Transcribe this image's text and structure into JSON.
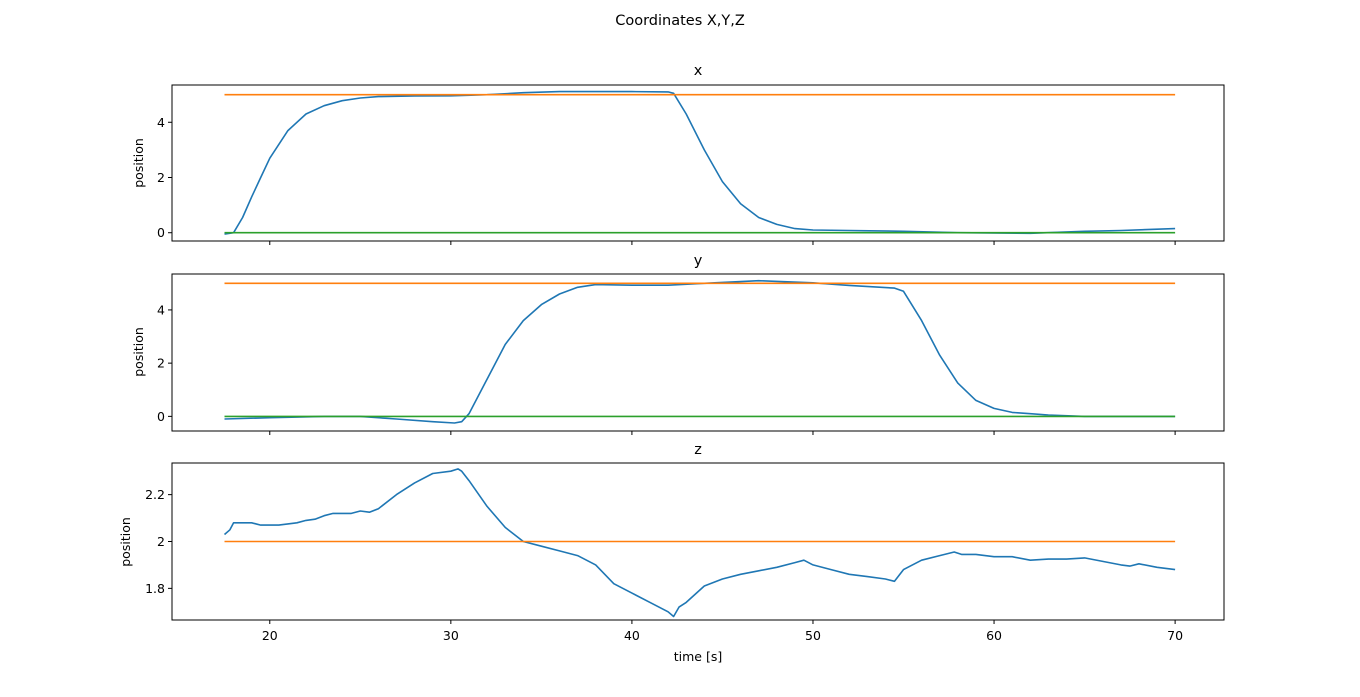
{
  "chart_data": {
    "title": "Coordinates X,Y,Z",
    "xlabel": "time [s]",
    "xlim": [
      14.6,
      72.7
    ],
    "xticks": [
      20,
      30,
      40,
      50,
      60,
      70
    ],
    "colors": {
      "actual": "#1f77b4",
      "target": "#ff7f0e",
      "zero": "#2ca02c"
    },
    "subplots": [
      {
        "type": "line",
        "title": "x",
        "ylabel": "position",
        "ylim": [
          -0.3,
          5.35
        ],
        "yticks": [
          0,
          2,
          4
        ],
        "series": [
          {
            "color": "#1f77b4",
            "x": [
              17.5,
              18.0,
              18.5,
              19.0,
              19.5,
              20.0,
              21.0,
              22.0,
              23.0,
              24.0,
              25.0,
              26.0,
              28.0,
              30.0,
              32.0,
              34.0,
              36.0,
              38.0,
              40.0,
              42.0,
              42.3,
              43.0,
              44.0,
              45.0,
              46.0,
              47.0,
              48.0,
              49.0,
              50.0,
              52.0,
              55.0,
              58.0,
              62.0,
              65.0,
              67.0,
              70.0
            ],
            "y": [
              -0.05,
              0.0,
              0.55,
              1.3,
              2.0,
              2.7,
              3.7,
              4.3,
              4.6,
              4.78,
              4.88,
              4.93,
              4.95,
              4.96,
              5.0,
              5.07,
              5.11,
              5.11,
              5.11,
              5.1,
              5.05,
              4.3,
              3.0,
              1.85,
              1.05,
              0.55,
              0.3,
              0.15,
              0.1,
              0.08,
              0.05,
              0.0,
              -0.02,
              0.05,
              0.08,
              0.15
            ]
          },
          {
            "color": "#ff7f0e",
            "x": [
              17.5,
              70.0
            ],
            "y": [
              5.0,
              5.0
            ]
          },
          {
            "color": "#2ca02c",
            "x": [
              17.5,
              70.0
            ],
            "y": [
              0.0,
              0.0
            ]
          }
        ]
      },
      {
        "type": "line",
        "title": "y",
        "ylabel": "position",
        "ylim": [
          -0.55,
          5.35
        ],
        "yticks": [
          0,
          2,
          4
        ],
        "series": [
          {
            "color": "#1f77b4",
            "x": [
              17.5,
              20.0,
              23.0,
              25.0,
              27.0,
              29.0,
              30.2,
              30.6,
              31.0,
              32.0,
              33.0,
              34.0,
              35.0,
              36.0,
              37.0,
              38.0,
              40.0,
              42.0,
              44.0,
              47.0,
              50.0,
              52.0,
              54.5,
              55.0,
              56.0,
              57.0,
              58.0,
              59.0,
              60.0,
              61.0,
              62.0,
              63.0,
              65.0,
              67.0,
              70.0
            ],
            "y": [
              -0.1,
              -0.05,
              0.0,
              0.0,
              -0.1,
              -0.2,
              -0.25,
              -0.2,
              0.1,
              1.4,
              2.7,
              3.6,
              4.2,
              4.6,
              4.85,
              4.95,
              4.93,
              4.93,
              5.0,
              5.1,
              5.02,
              4.92,
              4.82,
              4.7,
              3.6,
              2.3,
              1.25,
              0.6,
              0.3,
              0.15,
              0.1,
              0.05,
              0.0,
              0.0,
              0.0
            ]
          },
          {
            "color": "#ff7f0e",
            "x": [
              17.5,
              70.0
            ],
            "y": [
              5.0,
              5.0
            ]
          },
          {
            "color": "#2ca02c",
            "x": [
              17.5,
              70.0
            ],
            "y": [
              0.0,
              0.0
            ]
          }
        ]
      },
      {
        "type": "line",
        "title": "z",
        "ylabel": "position",
        "ylim": [
          1.665,
          2.335
        ],
        "yticks": [
          1.8,
          2.0,
          2.2
        ],
        "series": [
          {
            "color": "#1f77b4",
            "x": [
              17.5,
              17.8,
              18.0,
              18.5,
              19.0,
              19.5,
              20.0,
              20.5,
              21.0,
              21.5,
              22.0,
              22.5,
              23.0,
              23.5,
              24.0,
              24.5,
              25.0,
              25.5,
              26.0,
              27.0,
              28.0,
              29.0,
              30.0,
              30.4,
              30.6,
              31.0,
              32.0,
              33.0,
              34.0,
              35.0,
              36.0,
              37.0,
              38.0,
              39.0,
              40.0,
              41.0,
              42.0,
              42.3,
              42.6,
              43.0,
              44.0,
              45.0,
              46.0,
              47.0,
              48.0,
              49.0,
              49.5,
              50.0,
              51.0,
              52.0,
              53.0,
              54.0,
              54.5,
              54.8,
              55.0,
              56.0,
              57.0,
              57.8,
              58.2,
              59.0,
              60.0,
              61.0,
              62.0,
              63.0,
              64.0,
              65.0,
              66.0,
              67.0,
              67.5,
              68.0,
              69.0,
              70.0
            ],
            "y": [
              2.03,
              2.05,
              2.08,
              2.08,
              2.08,
              2.07,
              2.07,
              2.07,
              2.075,
              2.08,
              2.09,
              2.095,
              2.11,
              2.12,
              2.12,
              2.12,
              2.13,
              2.125,
              2.14,
              2.2,
              2.25,
              2.29,
              2.3,
              2.31,
              2.3,
              2.26,
              2.15,
              2.06,
              2.0,
              1.98,
              1.96,
              1.94,
              1.9,
              1.82,
              1.78,
              1.74,
              1.7,
              1.68,
              1.72,
              1.74,
              1.81,
              1.84,
              1.86,
              1.875,
              1.89,
              1.91,
              1.92,
              1.9,
              1.88,
              1.86,
              1.85,
              1.84,
              1.83,
              1.86,
              1.88,
              1.92,
              1.94,
              1.955,
              1.945,
              1.945,
              1.935,
              1.935,
              1.92,
              1.925,
              1.925,
              1.93,
              1.915,
              1.9,
              1.895,
              1.905,
              1.89,
              1.88
            ]
          },
          {
            "color": "#ff7f0e",
            "x": [
              17.5,
              70.0
            ],
            "y": [
              2.0,
              2.0
            ]
          }
        ]
      }
    ]
  }
}
